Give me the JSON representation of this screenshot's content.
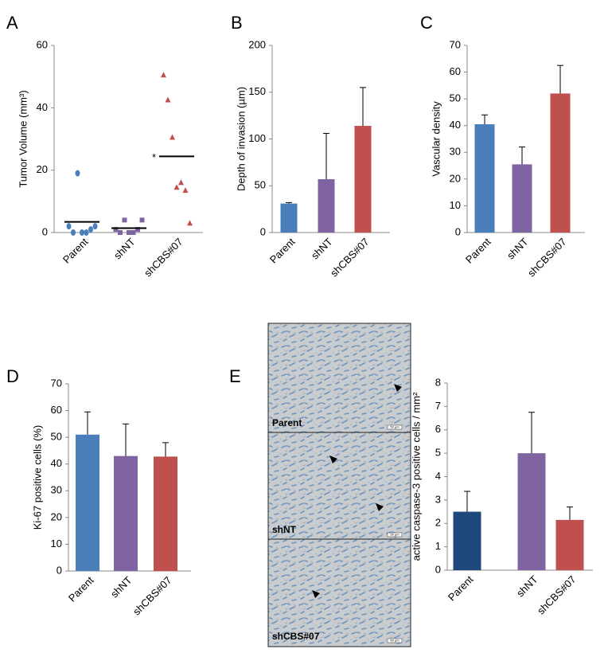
{
  "chart_data": [
    {
      "panel": "A",
      "type": "scatter",
      "ylabel": "Tumor Volume (mm³)",
      "categories": [
        "Parent",
        "shNT",
        "shCBS#07"
      ],
      "points": [
        [
          2,
          0,
          19,
          0,
          0,
          1,
          2
        ],
        [
          1,
          0,
          4,
          0,
          0,
          1,
          4
        ],
        [
          50.5,
          42.5,
          30.5,
          14.5,
          16,
          13.5,
          3
        ]
      ],
      "means": [
        3.4,
        1.4,
        24.4
      ],
      "markers": [
        "circle",
        "square",
        "triangle"
      ],
      "colors": [
        "#4a7ebb",
        "#8064a2",
        "#c0504d"
      ],
      "annotation": "*",
      "ylim": [
        0,
        60
      ],
      "yticks": [
        0,
        20,
        40,
        60
      ]
    },
    {
      "panel": "B",
      "type": "bar",
      "ylabel": "Depth of invasion (µm)",
      "categories": [
        "Parent",
        "shNT",
        "shCBS#07"
      ],
      "values": [
        31,
        57,
        114
      ],
      "errors": [
        1,
        49,
        41
      ],
      "colors": [
        "#4a7ebb",
        "#8064a2",
        "#c0504d"
      ],
      "ylim": [
        0,
        200
      ],
      "yticks": [
        0,
        50,
        100,
        150,
        200
      ]
    },
    {
      "panel": "C",
      "type": "bar",
      "ylabel": "Vascular density",
      "categories": [
        "Parent",
        "shNT",
        "shCBS#07"
      ],
      "values": [
        40.5,
        25.5,
        52
      ],
      "errors": [
        3.5,
        6.5,
        10.5
      ],
      "colors": [
        "#4a7ebb",
        "#8064a2",
        "#c0504d"
      ],
      "ylim": [
        0,
        70
      ],
      "yticks": [
        0,
        10,
        20,
        30,
        40,
        50,
        60,
        70
      ]
    },
    {
      "panel": "D",
      "type": "bar",
      "ylabel": "Ki-67 positive cells (%)",
      "categories": [
        "Parent",
        "shNT",
        "shCBS#07"
      ],
      "values": [
        51,
        43,
        42.8
      ],
      "errors": [
        8.5,
        12,
        5.2
      ],
      "colors": [
        "#4a7ebb",
        "#8064a2",
        "#c0504d"
      ],
      "ylim": [
        0,
        70
      ],
      "yticks": [
        0,
        10,
        20,
        30,
        40,
        50,
        60,
        70
      ]
    },
    {
      "type": "bar",
      "ylabel": "active caspase-3 positive cells / mm²",
      "categories": [
        "Parent",
        "shNT",
        "shCBS#07"
      ],
      "values": [
        2.5,
        5.0,
        2.15
      ],
      "errors": [
        0.87,
        1.75,
        0.55
      ],
      "colors": [
        "#1f497d",
        "#8064a2",
        "#c0504d"
      ],
      "ylim": [
        0,
        8
      ],
      "yticks": [
        0,
        1,
        2,
        3,
        4,
        5,
        6,
        7,
        8
      ]
    }
  ],
  "micrographs": {
    "panel": "E",
    "labels": [
      "Parent",
      "shNT",
      "shCBS#07"
    ],
    "scale_bar": "50 µm"
  }
}
